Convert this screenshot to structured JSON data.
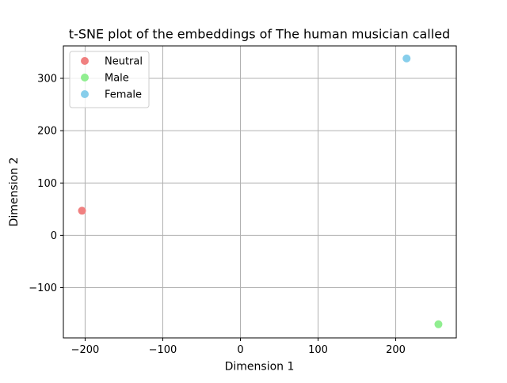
{
  "chart_data": {
    "type": "scatter",
    "title": "t-SNE plot of the embeddings of The human musician called",
    "xlabel": "Dimension 1",
    "ylabel": "Dimension 2",
    "xlim": [
      -228,
      278
    ],
    "ylim": [
      -196,
      362
    ],
    "xticks": [
      -200,
      -100,
      0,
      100,
      200
    ],
    "yticks": [
      -100,
      0,
      100,
      200,
      300
    ],
    "xtick_labels": [
      "−200",
      "−100",
      "0",
      "100",
      "200"
    ],
    "ytick_labels": [
      "−100",
      "0",
      "100",
      "200",
      "300"
    ],
    "grid": true,
    "legend_position": "top-left",
    "series": [
      {
        "name": "Neutral",
        "color": "#F08080",
        "points": [
          {
            "x": -204,
            "y": 47
          }
        ]
      },
      {
        "name": "Male",
        "color": "#90EE90",
        "points": [
          {
            "x": 255,
            "y": -170
          }
        ]
      },
      {
        "name": "Female",
        "color": "#87CEEB",
        "points": [
          {
            "x": 214,
            "y": 338
          }
        ]
      }
    ]
  }
}
